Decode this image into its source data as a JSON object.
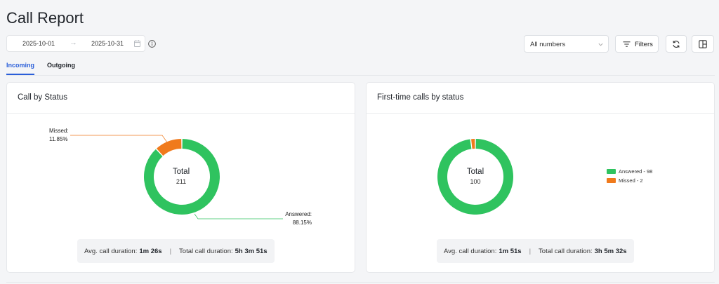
{
  "page": {
    "title": "Call Report"
  },
  "date_range": {
    "start": "2025-10-01",
    "end": "2025-10-31",
    "arrow": "→"
  },
  "numbers_select": {
    "value": "All numbers"
  },
  "toolbar": {
    "filters_label": "Filters"
  },
  "tabs": [
    {
      "label": "Incoming",
      "active": true
    },
    {
      "label": "Outgoing",
      "active": false
    }
  ],
  "colors": {
    "answered": "#2fc35f",
    "missed": "#f07a1c",
    "accent": "#2b5fd9"
  },
  "call_by_status": {
    "title": "Call by Status",
    "total_label": "Total",
    "total_value": "211",
    "callouts": {
      "missed_label": "Missed:",
      "missed_pct": "11.85%",
      "answered_label": "Answered:",
      "answered_pct": "88.15%"
    },
    "summary": {
      "avg_label": "Avg. call duration:",
      "avg_value": "1m 26s",
      "sep": "|",
      "total_label": "Total call duration:",
      "total_value": "5h 3m 51s"
    },
    "chart_data": {
      "type": "pie",
      "categories": [
        "Answered",
        "Missed"
      ],
      "values": [
        88.15,
        11.85
      ],
      "title": "Call by Status"
    }
  },
  "first_time": {
    "title": "First-time calls by status",
    "total_label": "Total",
    "total_value": "100",
    "legend": [
      {
        "label": "Answered - 98"
      },
      {
        "label": "Missed - 2"
      }
    ],
    "summary": {
      "avg_label": "Avg. call duration:",
      "avg_value": "1m 51s",
      "sep": "|",
      "total_label": "Total call duration:",
      "total_value": "3h 5m 32s"
    },
    "chart_data": {
      "type": "pie",
      "categories": [
        "Answered",
        "Missed"
      ],
      "values": [
        98,
        2
      ],
      "title": "First-time calls by status"
    }
  }
}
